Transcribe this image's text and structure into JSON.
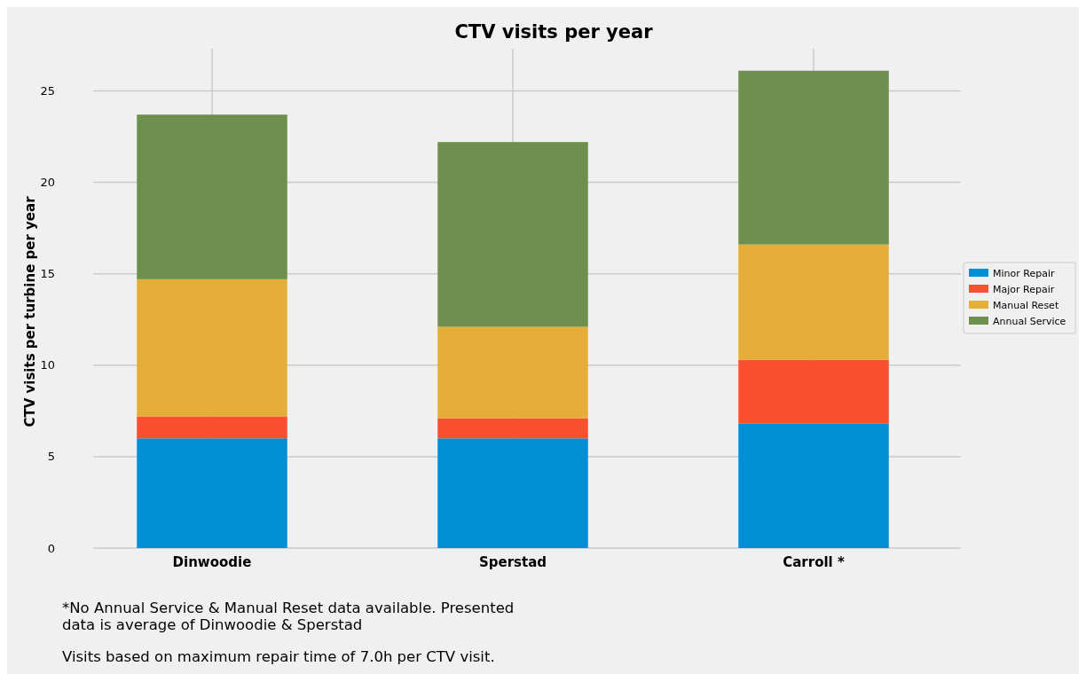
{
  "chart_data": {
    "type": "bar",
    "title": "CTV visits per year",
    "ylabel": "CTV visits per turbine per year",
    "categories": [
      "Dinwoodie",
      "Sperstad",
      "Carroll *"
    ],
    "stacked": true,
    "series": [
      {
        "name": "Minor Repair",
        "color": "#008fd5",
        "values": [
          6.0,
          6.0,
          6.8
        ]
      },
      {
        "name": "Major Repair",
        "color": "#fc4f30",
        "values": [
          1.2,
          1.1,
          3.5
        ]
      },
      {
        "name": "Manual Reset",
        "color": "#e5ae38",
        "values": [
          7.5,
          5.0,
          6.3
        ]
      },
      {
        "name": "Annual Service",
        "color": "#6d904f",
        "values": [
          9.0,
          10.1,
          9.5
        ]
      }
    ],
    "ylim": [
      0,
      27.3
    ],
    "yticks": [
      0,
      5,
      10,
      15,
      20,
      25
    ],
    "grid": true,
    "legend": "right",
    "annotations": [
      "*No Annual Service & Manual Reset data available. Presented data is average of Dinwoodie & Sperstad",
      "Visits based on maximum repair time of 7.0h per CTV visit."
    ]
  }
}
